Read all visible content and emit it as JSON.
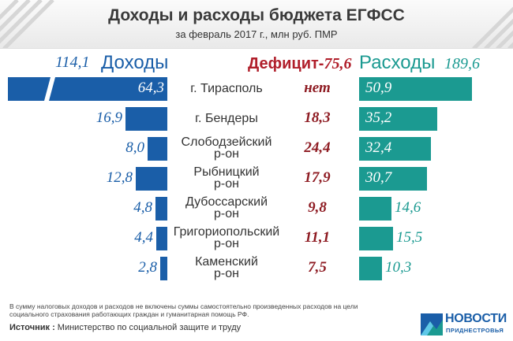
{
  "header": {
    "title": "Доходы и расходы бюджета ЕГФСС",
    "subtitle": "за февраль 2017 г., млн руб. ПМР"
  },
  "summary": {
    "income_total": "114,1",
    "income_label": "Доходы",
    "deficit_label": "Дефицит-",
    "deficit_total": "75,6",
    "expense_label": "Расходы",
    "expense_total": "189,6"
  },
  "chart_data": {
    "type": "bar",
    "categories": [
      "г. Тирасполь",
      "г. Бендеры",
      "Слободзейский р-он",
      "Рыбницкий р-он",
      "Дубоссарский р-он",
      "Григориопольский р-он",
      "Каменский р-он"
    ],
    "series": [
      {
        "name": "Доходы",
        "values": [
          64.3,
          16.9,
          8.0,
          12.8,
          4.8,
          4.4,
          2.8
        ]
      },
      {
        "name": "Расходы",
        "values": [
          50.9,
          35.2,
          32.4,
          30.7,
          14.6,
          15.5,
          10.3
        ]
      }
    ],
    "rows": [
      {
        "region_lines": [
          "г. Тирасполь"
        ],
        "income": "64,3",
        "deficit": "нет",
        "expense": "50,9"
      },
      {
        "region_lines": [
          "г. Бендеры"
        ],
        "income": "16,9",
        "deficit": "18,3",
        "expense": "35,2"
      },
      {
        "region_lines": [
          "Слободзейский",
          "р-он"
        ],
        "income": "8,0",
        "deficit": "24,4",
        "expense": "32,4"
      },
      {
        "region_lines": [
          "Рыбницкий",
          "р-он"
        ],
        "income": "12,8",
        "deficit": "17,9",
        "expense": "30,7"
      },
      {
        "region_lines": [
          "Дубоссарский",
          "р-он"
        ],
        "income": "4,8",
        "deficit": "9,8",
        "expense": "14,6"
      },
      {
        "region_lines": [
          "Григориопольский",
          "р-он"
        ],
        "income": "4,4",
        "deficit": "11,1",
        "expense": "15,5"
      },
      {
        "region_lines": [
          "Каменский",
          "р-он"
        ],
        "income": "2,8",
        "deficit": "7,5",
        "expense": "10,3"
      }
    ],
    "colors": {
      "income": "#1a5ea8",
      "expense": "#1b9a91",
      "deficit": "#8e1b22"
    }
  },
  "footer": {
    "note": "В сумму налоговых доходов и расходов не включены суммы самостоятельно произведенных расходов на цели социального страхования работающих граждан и гуманитарная помощь РФ.",
    "source_label": "Источник :",
    "source_text": " Министерство по социальной защите и труду",
    "logo_name": "НОВОСТИ",
    "logo_sub": "ПРИДНЕСТРОВЬЯ"
  }
}
